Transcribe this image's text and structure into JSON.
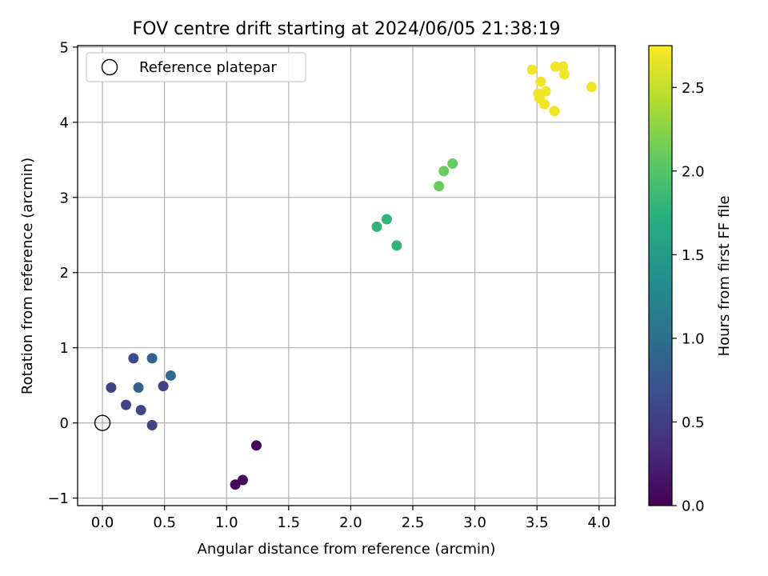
{
  "chart_data": {
    "type": "scatter",
    "title": "FOV centre drift starting at 2024/06/05 21:38:19",
    "xlabel": "Angular distance from reference (arcmin)",
    "ylabel": "Rotation from reference (arcmin)",
    "xlim": [
      -0.2,
      4.13
    ],
    "ylim": [
      -1.1,
      5.02
    ],
    "xticks": [
      0.0,
      0.5,
      1.0,
      1.5,
      2.0,
      2.5,
      3.0,
      3.5,
      4.0
    ],
    "xtick_labels": [
      "0.0",
      "0.5",
      "1.0",
      "1.5",
      "2.0",
      "2.5",
      "3.0",
      "3.5",
      "4.0"
    ],
    "yticks": [
      -1,
      0,
      1,
      2,
      3,
      4,
      5
    ],
    "ytick_labels": [
      "−1",
      "0",
      "1",
      "2",
      "3",
      "4",
      "5"
    ],
    "grid": true,
    "legend": {
      "position": "top-left",
      "entries": [
        {
          "label": "Reference platepar",
          "marker": "hollow-circle"
        }
      ]
    },
    "reference_point": {
      "x": 0.0,
      "y": 0.0
    },
    "colorbar": {
      "label": "Hours from first FF file",
      "colormap": "viridis",
      "range": [
        0.0,
        2.75
      ],
      "ticks": [
        0.0,
        0.5,
        1.0,
        1.5,
        2.0,
        2.5
      ],
      "tick_labels": [
        "0.0",
        "0.5",
        "1.0",
        "1.5",
        "2.0",
        "2.5"
      ]
    },
    "points": [
      {
        "x": 1.07,
        "y": -0.82,
        "c": 0.05
      },
      {
        "x": 1.13,
        "y": -0.76,
        "c": 0.05
      },
      {
        "x": 1.24,
        "y": -0.3,
        "c": 0.05
      },
      {
        "x": 0.4,
        "y": -0.03,
        "c": 0.55
      },
      {
        "x": 0.31,
        "y": 0.17,
        "c": 0.55
      },
      {
        "x": 0.19,
        "y": 0.24,
        "c": 0.55
      },
      {
        "x": 0.07,
        "y": 0.47,
        "c": 0.55
      },
      {
        "x": 0.49,
        "y": 0.49,
        "c": 0.55
      },
      {
        "x": 0.29,
        "y": 0.47,
        "c": 0.85
      },
      {
        "x": 0.25,
        "y": 0.86,
        "c": 0.6
      },
      {
        "x": 0.4,
        "y": 0.86,
        "c": 0.85
      },
      {
        "x": 0.55,
        "y": 0.63,
        "c": 0.95
      },
      {
        "x": 2.21,
        "y": 2.61,
        "c": 1.78
      },
      {
        "x": 2.29,
        "y": 2.71,
        "c": 1.78
      },
      {
        "x": 2.37,
        "y": 2.36,
        "c": 1.78
      },
      {
        "x": 2.71,
        "y": 3.15,
        "c": 2.1
      },
      {
        "x": 2.75,
        "y": 3.35,
        "c": 2.1
      },
      {
        "x": 2.82,
        "y": 3.45,
        "c": 2.1
      },
      {
        "x": 3.46,
        "y": 4.7,
        "c": 2.7
      },
      {
        "x": 3.53,
        "y": 4.54,
        "c": 2.7
      },
      {
        "x": 3.57,
        "y": 4.41,
        "c": 2.7
      },
      {
        "x": 3.51,
        "y": 4.38,
        "c": 2.7
      },
      {
        "x": 3.52,
        "y": 4.32,
        "c": 2.7
      },
      {
        "x": 3.56,
        "y": 4.24,
        "c": 2.7
      },
      {
        "x": 3.64,
        "y": 4.15,
        "c": 2.7
      },
      {
        "x": 3.65,
        "y": 4.74,
        "c": 2.7
      },
      {
        "x": 3.71,
        "y": 4.74,
        "c": 2.7
      },
      {
        "x": 3.72,
        "y": 4.64,
        "c": 2.7
      },
      {
        "x": 3.94,
        "y": 4.47,
        "c": 2.7
      }
    ]
  }
}
